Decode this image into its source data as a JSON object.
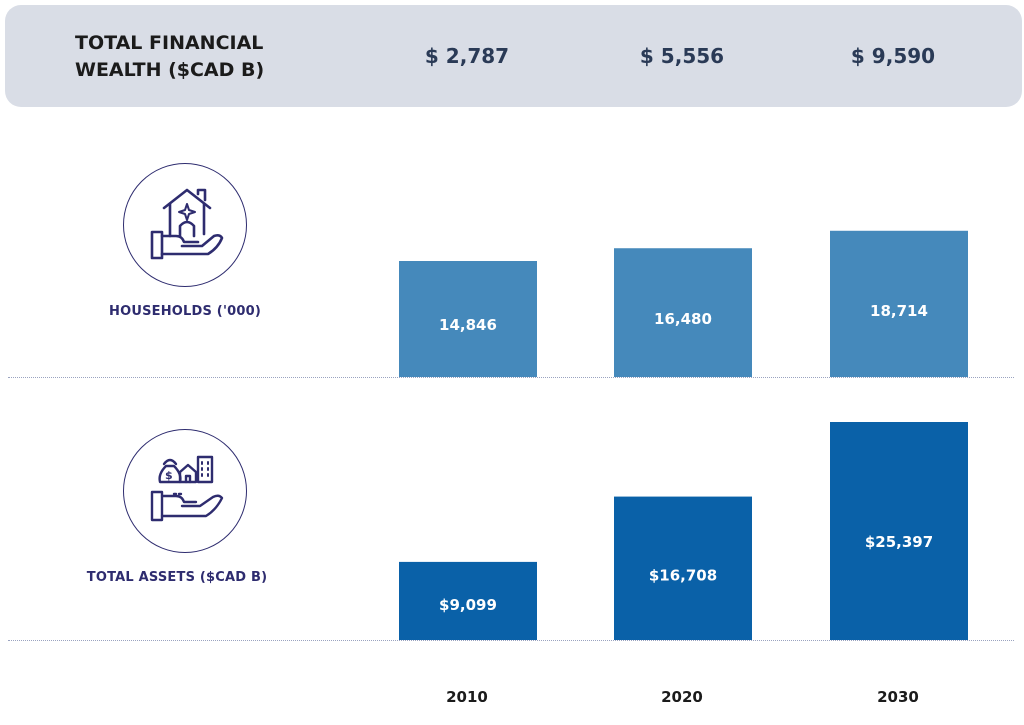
{
  "banner": {
    "title_line1": "TOTAL FINANCIAL",
    "title_line2": "WEALTH ($CAD B)",
    "values": [
      "$ 2,787",
      "$ 5,556",
      "$ 9,590"
    ]
  },
  "rows": {
    "households_label": "HOUSEHOLDS ('000)",
    "assets_label": "TOTAL ASSETS ($CAD B)"
  },
  "icons": {
    "households": "house-in-hand-icon",
    "assets": "money-bag-house-building-in-hand-icon"
  },
  "colors": {
    "households_bar": "#4589bb",
    "assets_bar": "#0a61a8",
    "banner_bg": "#d9dde6",
    "label_navy": "#2e2c6f"
  },
  "chart_data": [
    {
      "type": "bar",
      "title": "HOUSEHOLDS ('000)",
      "categories": [
        "2010",
        "2020",
        "2030"
      ],
      "values": [
        14846,
        16480,
        18714
      ],
      "labels": [
        "14,846",
        "16,480",
        "18,714"
      ]
    },
    {
      "type": "bar",
      "title": "TOTAL ASSETS ($CAD B)",
      "categories": [
        "2010",
        "2020",
        "2030"
      ],
      "values": [
        9099,
        16708,
        25397
      ],
      "labels": [
        "$9,099",
        "$16,708",
        "$25,397"
      ]
    }
  ],
  "x_labels": [
    "2010",
    "2020",
    "2030"
  ]
}
